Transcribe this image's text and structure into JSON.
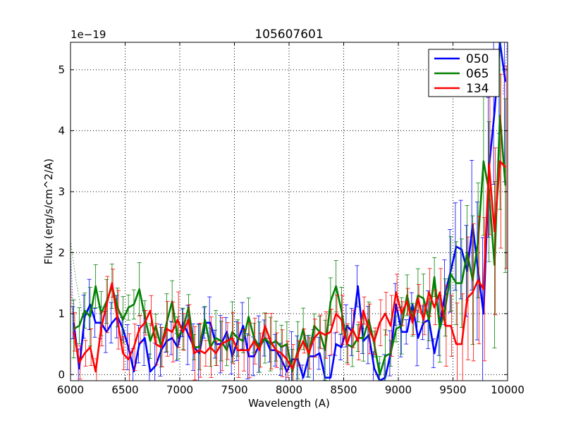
{
  "chart_data": {
    "type": "line",
    "title": "105607601",
    "xlabel": "Wavelength (A)",
    "ylabel": "Flux (erg/s/cm^2/A)",
    "y_offset_label": "1e−19",
    "xlim": [
      6000,
      10000
    ],
    "ylim": [
      -0.1,
      5.45
    ],
    "x_ticks": [
      6000,
      6500,
      7000,
      7500,
      8000,
      8500,
      9000,
      9500,
      10000
    ],
    "x_tick_labels": [
      "6000",
      "6500",
      "7000",
      "7500",
      "8000",
      "8500",
      "9000",
      "9500",
      "10000"
    ],
    "y_ticks": [
      0,
      1,
      2,
      3,
      4,
      5
    ],
    "y_tick_labels": [
      "0",
      "1",
      "2",
      "3",
      "4",
      "5"
    ],
    "grid": true,
    "legend_position": "top-right",
    "x": [
      6030,
      6080,
      6130,
      6180,
      6230,
      6280,
      6330,
      6380,
      6430,
      6480,
      6530,
      6580,
      6630,
      6680,
      6730,
      6780,
      6830,
      6880,
      6930,
      6980,
      7030,
      7080,
      7130,
      7180,
      7230,
      7280,
      7330,
      7380,
      7430,
      7480,
      7530,
      7580,
      7630,
      7680,
      7730,
      7780,
      7830,
      7880,
      7930,
      7980,
      8030,
      8080,
      8130,
      8180,
      8230,
      8280,
      8330,
      8380,
      8430,
      8480,
      8530,
      8580,
      8630,
      8680,
      8730,
      8780,
      8830,
      8880,
      8930,
      8980,
      9030,
      9080,
      9130,
      9180,
      9230,
      9280,
      9330,
      9380,
      9430,
      9480,
      9530,
      9580,
      9630,
      9680,
      9730,
      9780,
      9830,
      9880,
      9930,
      9980
    ],
    "series": [
      {
        "name": "050",
        "color": "#0000ff",
        "values": [
          0.85,
          0.1,
          0.95,
          1.15,
          0.85,
          0.85,
          0.7,
          0.85,
          0.95,
          0.75,
          0.45,
          0.05,
          0.5,
          0.6,
          0.05,
          0.15,
          0.4,
          0.55,
          0.6,
          0.45,
          0.85,
          0.65,
          0.45,
          0.35,
          0.85,
          0.85,
          0.5,
          0.5,
          0.7,
          0.3,
          0.55,
          0.8,
          0.3,
          0.3,
          0.5,
          0.6,
          0.4,
          0.4,
          0.25,
          0.05,
          0.25,
          0.25,
          -0.05,
          0.3,
          0.3,
          0.35,
          -0.05,
          -0.05,
          0.5,
          0.45,
          0.8,
          0.7,
          1.45,
          0.55,
          0.65,
          0.1,
          -0.1,
          -0.05,
          0.35,
          1.15,
          0.7,
          0.7,
          1.15,
          0.6,
          0.85,
          0.9,
          0.35,
          0.8,
          1.35,
          1.7,
          2.1,
          2.05,
          1.7,
          2.45,
          1.7,
          1.0,
          3.4,
          4.3,
          5.45,
          4.8
        ]
      },
      {
        "name": "065",
        "color": "#008000",
        "values": [
          0.75,
          0.8,
          1.05,
          0.95,
          1.45,
          1.0,
          1.2,
          1.45,
          1.1,
          0.9,
          1.1,
          1.15,
          1.4,
          0.95,
          0.55,
          0.8,
          0.45,
          0.85,
          1.2,
          0.6,
          0.75,
          1.1,
          0.45,
          0.45,
          0.9,
          0.45,
          0.6,
          0.55,
          0.4,
          0.7,
          0.6,
          0.55,
          0.95,
          0.6,
          0.45,
          0.6,
          0.5,
          0.55,
          0.45,
          0.5,
          0.05,
          0.4,
          0.75,
          0.3,
          0.8,
          0.7,
          0.4,
          1.2,
          1.45,
          1.05,
          0.5,
          0.45,
          0.6,
          0.6,
          0.9,
          0.5,
          0.0,
          0.3,
          0.35,
          0.75,
          0.8,
          1.3,
          0.9,
          1.3,
          1.25,
          0.9,
          1.6,
          0.75,
          1.1,
          1.65,
          1.5,
          1.5,
          2.0,
          1.55,
          2.2,
          3.5,
          3.0,
          1.8,
          4.25,
          3.1
        ]
      },
      {
        "name": "134",
        "color": "#ff0000",
        "values": [
          0.7,
          0.2,
          0.35,
          0.45,
          0.05,
          0.75,
          1.15,
          1.5,
          0.9,
          0.35,
          0.25,
          0.45,
          0.75,
          0.85,
          1.05,
          0.5,
          0.45,
          0.75,
          0.7,
          0.9,
          0.7,
          0.9,
          0.35,
          0.4,
          0.35,
          0.45,
          0.35,
          0.5,
          0.55,
          0.6,
          0.4,
          0.4,
          0.4,
          0.55,
          0.4,
          0.8,
          0.55,
          0.4,
          0.35,
          0.25,
          0.1,
          0.35,
          0.55,
          0.35,
          0.6,
          0.7,
          0.65,
          0.7,
          1.0,
          0.9,
          0.5,
          0.75,
          0.55,
          1.05,
          0.75,
          0.55,
          0.85,
          1.0,
          0.8,
          1.35,
          1.0,
          1.2,
          0.85,
          1.25,
          0.9,
          1.35,
          1.1,
          1.35,
          0.8,
          0.8,
          0.5,
          0.5,
          1.25,
          1.35,
          1.55,
          1.4,
          3.45,
          2.35,
          3.5,
          3.4
        ]
      }
    ],
    "dotted_extensions": [
      {
        "name": "050",
        "x": [
          6000,
          6030
        ],
        "values": [
          2.0,
          0.85
        ]
      },
      {
        "name": "065",
        "x": [
          6000,
          6050,
          6100
        ],
        "values": [
          2.2,
          1.55,
          1.05
        ]
      },
      {
        "name": "134",
        "x": [
          6000,
          6030
        ],
        "values": [
          1.5,
          0.7
        ]
      },
      {
        "name": "050",
        "x": [
          9960,
          10000
        ],
        "values": [
          4.6,
          5.5
        ]
      }
    ]
  }
}
